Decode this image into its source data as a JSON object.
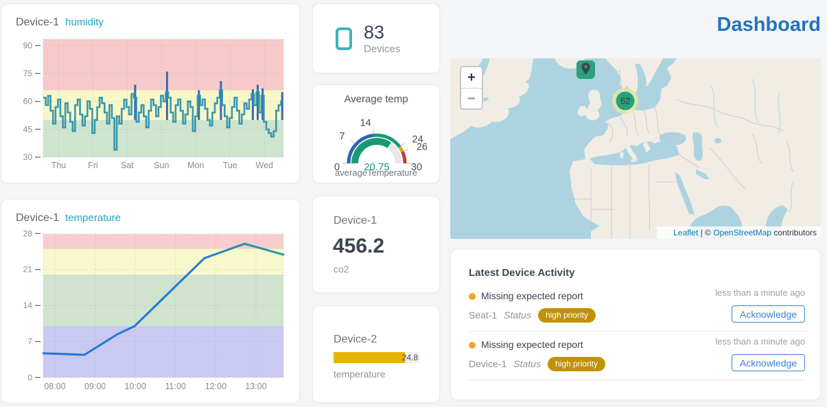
{
  "header": {
    "title": "Dashboard"
  },
  "stats": {
    "devices": {
      "count": "83",
      "label": "Devices"
    },
    "co2": {
      "device": "Device-1",
      "value": "456.2",
      "label": "co2"
    }
  },
  "chart_data": [
    {
      "type": "step-line",
      "device": "Device-1",
      "attribute": "humidity",
      "yticks": [
        30,
        45,
        60,
        75,
        90
      ],
      "xticks": [
        "Thu",
        "Fri",
        "Sat",
        "Sun",
        "Mon",
        "Tue",
        "Wed"
      ],
      "ylim": [
        30,
        93.5
      ],
      "line_color": "#2e93ad",
      "spike_color": "#3a68b4",
      "bands": [
        {
          "from": 66,
          "to": 93.5,
          "color": "#f6caca"
        },
        {
          "from": 50,
          "to": 66,
          "color": "#f7f7c8"
        },
        {
          "from": 30,
          "to": 50,
          "color": "#cfe4cf"
        }
      ],
      "values": [
        62,
        58,
        63,
        55,
        48,
        57,
        61,
        52,
        46,
        59,
        54,
        49,
        44,
        58,
        61,
        53,
        47,
        52,
        60,
        56,
        43,
        50,
        57,
        62,
        59,
        54,
        48,
        58,
        51,
        34,
        52,
        48,
        56,
        61,
        57,
        53,
        64,
        62,
        49,
        54,
        58,
        52,
        46,
        55,
        61,
        58,
        52,
        57,
        63,
        60,
        65,
        62,
        54,
        49,
        58,
        61,
        55,
        48,
        53,
        60,
        57,
        44,
        52,
        63,
        58,
        61,
        56,
        50,
        47,
        54,
        59,
        62,
        66,
        58,
        52,
        46,
        51,
        57,
        62,
        55,
        48,
        53,
        59,
        56,
        61,
        64,
        58,
        65,
        54,
        63,
        49,
        45,
        43,
        41,
        44,
        55,
        58,
        60
      ],
      "spikes": [
        {
          "i": 37,
          "v": 69
        },
        {
          "i": 50,
          "v": 76
        },
        {
          "i": 63,
          "v": 66
        },
        {
          "i": 72,
          "v": 71
        },
        {
          "i": 85,
          "v": 66.5
        },
        {
          "i": 87,
          "v": 69
        },
        {
          "i": 89,
          "v": 67
        },
        {
          "i": 97,
          "v": 65
        }
      ]
    },
    {
      "type": "line",
      "device": "Device-1",
      "attribute": "temperature",
      "yticks": [
        0,
        7,
        14,
        21,
        28
      ],
      "xticks": [
        "08:00",
        "09:00",
        "10:00",
        "11:00",
        "12:00",
        "13:00"
      ],
      "ylim": [
        0,
        27.9
      ],
      "line_color_start": "#1d79d4",
      "line_color_end": "#2f9b9b",
      "bands": [
        {
          "from": 25,
          "to": 27.9,
          "color": "#f7cdcd"
        },
        {
          "from": 20,
          "to": 25,
          "color": "#f8f8cd"
        },
        {
          "from": 10,
          "to": 20,
          "color": "#cfe3cf"
        },
        {
          "from": 0,
          "to": 10,
          "color": "#c9c9f2"
        }
      ],
      "points": [
        {
          "time": "07:43",
          "value": 4.7
        },
        {
          "time": "08:44",
          "value": 4.4
        },
        {
          "time": "09:33",
          "value": 8.4
        },
        {
          "time": "09:59",
          "value": 10.0
        },
        {
          "time": "11:43",
          "value": 23.2
        },
        {
          "time": "12:43",
          "value": 26.0
        },
        {
          "time": "13:42",
          "value": 23.9
        }
      ]
    },
    {
      "type": "gauge",
      "title": "Average temp",
      "label": "averageTemperature",
      "min": 0,
      "max": 30,
      "value": 20.75,
      "value_display": "20.75",
      "value_color": "#169b72",
      "track_color": "#e8e8e8",
      "ticks": [
        0,
        7,
        14,
        24,
        26,
        30
      ],
      "segments": [
        {
          "from": 0,
          "to": 14,
          "color": "#2c66ae"
        },
        {
          "from": 14,
          "to": 24,
          "color": "#169b72"
        },
        {
          "from": 24,
          "to": 26,
          "color": "#d9a421"
        },
        {
          "from": 26,
          "to": 30,
          "color": "#c43a31"
        }
      ]
    },
    {
      "type": "bar",
      "device": "Device-2",
      "attribute": "temperature",
      "value": 24.8,
      "value_display": "24.8",
      "max": 30,
      "bar_color": "#e7b402",
      "track_color": "#eef1f5"
    }
  ],
  "map": {
    "cluster_count": "62",
    "zoom_in": "+",
    "zoom_out": "−",
    "attribution": {
      "leaflet": "Leaflet",
      "sep": " | © ",
      "osm": "OpenStreetMap",
      "contributors": " contributors"
    }
  },
  "activity": {
    "title": "Latest Device Activity",
    "items": [
      {
        "dot_color": "#eaa928",
        "title": "Missing expected report",
        "device": "Seat-1",
        "status_label": "Status",
        "priority": "high priority",
        "priority_color": "#c09209",
        "time": "less than a minute ago",
        "action": "Acknowledge"
      },
      {
        "dot_color": "#eaa928",
        "title": "Missing expected report",
        "device": "Device-1",
        "status_label": "Status",
        "priority": "high priority",
        "priority_color": "#c09209",
        "time": "less than a minute ago",
        "action": "Acknowledge"
      }
    ]
  }
}
